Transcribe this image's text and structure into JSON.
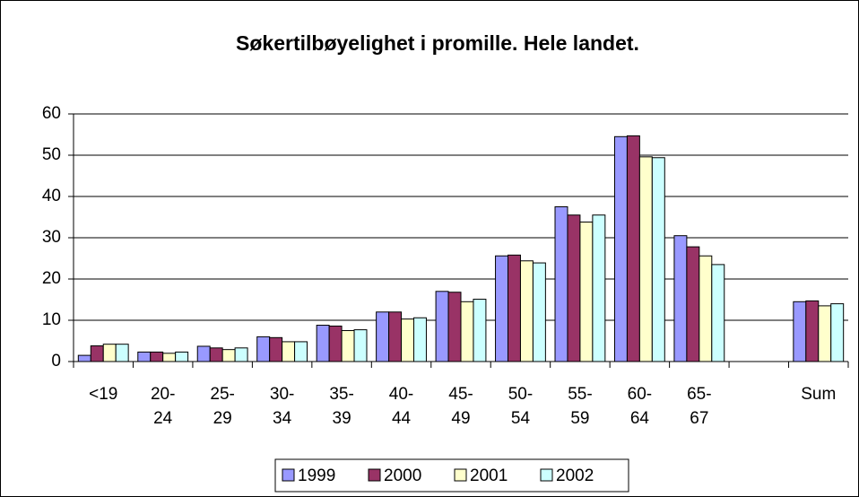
{
  "chart_data": {
    "type": "bar",
    "title": "Søkertilbøyelighet i promille. Hele landet.",
    "categories": [
      "<19",
      "20-24",
      "25-29",
      "30-34",
      "35-39",
      "40-44",
      "45-49",
      "50-54",
      "55-59",
      "60-64",
      "65-67",
      null,
      "Sum"
    ],
    "series": [
      {
        "name": "1999",
        "color": "#9999ff",
        "values": [
          1.5,
          2.3,
          3.7,
          6.0,
          8.8,
          12.0,
          17.0,
          25.6,
          37.5,
          54.5,
          30.5,
          null,
          14.5
        ]
      },
      {
        "name": "2000",
        "color": "#993366",
        "values": [
          3.8,
          2.3,
          3.3,
          5.8,
          8.6,
          12.0,
          16.8,
          25.8,
          35.5,
          54.7,
          27.8,
          null,
          14.7
        ]
      },
      {
        "name": "2001",
        "color": "#ffffcc",
        "values": [
          4.2,
          2.0,
          2.9,
          4.8,
          7.5,
          10.3,
          14.5,
          24.4,
          33.8,
          49.6,
          25.6,
          null,
          13.5
        ]
      },
      {
        "name": "2002",
        "color": "#ccffff",
        "values": [
          4.2,
          2.3,
          3.3,
          4.8,
          7.7,
          10.6,
          15.1,
          23.9,
          35.5,
          49.4,
          23.5,
          null,
          14.0
        ]
      }
    ],
    "ylim": [
      0,
      60
    ],
    "yticks": [
      0,
      10,
      20,
      30,
      40,
      50,
      60
    ],
    "grid": true,
    "legend": "bottom"
  }
}
